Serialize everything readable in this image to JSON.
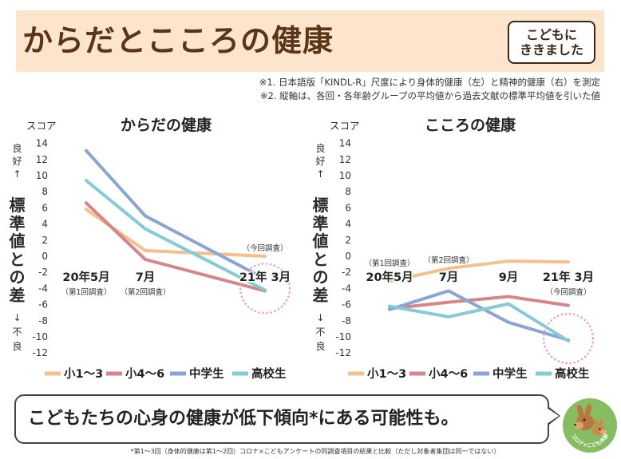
{
  "header": {
    "title": "からだとこころの健康",
    "badge": [
      "こどもに",
      "ききました"
    ]
  },
  "notes": [
    "※1. 日本語版「KINDL-R」尺度により身体的健康（左）と精神的健康（右）を測定",
    "※2. 縦軸は、各回・各年齢グループの平均値から過去文献の標準平均値を引いた値"
  ],
  "chart_data": [
    {
      "type": "line",
      "title": "からだの健康",
      "ylabel": "スコア",
      "side_labels": {
        "top": "良好↑",
        "middle": "標準値との差",
        "bottom": "↓不良"
      },
      "x": [
        "20年5月",
        "7月",
        "21年 3月"
      ],
      "yticks": [
        14,
        12,
        10,
        8,
        6,
        4,
        2,
        0,
        -2,
        -4,
        -6,
        -8,
        -10,
        -12
      ],
      "ylim": [
        -12,
        14
      ],
      "series": [
        {
          "name": "小1～3",
          "color": "#f5c08c",
          "values": [
            5.8,
            0.7,
            0.0
          ]
        },
        {
          "name": "小4～6",
          "color": "#d5868a",
          "values": [
            6.6,
            -0.4,
            -4.3
          ]
        },
        {
          "name": "中学生",
          "color": "#8aa4d4",
          "values": [
            13.1,
            5.0,
            -2.8
          ]
        },
        {
          "name": "高校生",
          "color": "#85cad6",
          "values": [
            9.4,
            3.4,
            -4.2
          ]
        }
      ],
      "annotations": [
        {
          "at": "20年5月",
          "text": "（第1回調査）",
          "position": "below"
        },
        {
          "at": "7月",
          "text": "（第2回調査）",
          "position": "below"
        },
        {
          "at": "21年 3月",
          "text": "（今回調査）",
          "position": "above"
        }
      ],
      "highlight": "21年 3月",
      "grid": false,
      "legend": "bottom"
    },
    {
      "type": "line",
      "title": "こころの健康",
      "ylabel": "スコア",
      "side_labels": {
        "top": "良好↑",
        "middle": "標準値との差",
        "bottom": "↓不良"
      },
      "x": [
        "20年5月",
        "7月",
        "9月",
        "21年 3月"
      ],
      "yticks": [
        14,
        12,
        10,
        8,
        6,
        4,
        2,
        0,
        -2,
        -4,
        -6,
        -8,
        -10,
        -12
      ],
      "ylim": [
        -12,
        14
      ],
      "series": [
        {
          "name": "小1～3",
          "color": "#f5c08c",
          "values": [
            -3.1,
            -1.5,
            -0.6,
            -0.7
          ]
        },
        {
          "name": "小4～6",
          "color": "#d5868a",
          "values": [
            -6.5,
            -5.7,
            -5.0,
            -6.1
          ]
        },
        {
          "name": "中学生",
          "color": "#8aa4d4",
          "values": [
            -6.6,
            -4.3,
            -8.2,
            -10.4
          ]
        },
        {
          "name": "高校生",
          "color": "#85cad6",
          "values": [
            -6.2,
            -7.5,
            -5.9,
            -10.5
          ]
        }
      ],
      "annotations": [
        {
          "at": "20年5月",
          "text": "（第1回調査）",
          "position": "above"
        },
        {
          "at": "7月",
          "text": "（第2回調査）",
          "position": "above"
        },
        {
          "at": "21年 3月",
          "text": "（今回調査）",
          "position": "below"
        }
      ],
      "highlight": "21年 3月",
      "grid": false,
      "legend": "bottom"
    }
  ],
  "callout": {
    "text": "こどもたちの心身の健康が低下傾向*にある可能性も。"
  },
  "mascot": {
    "logo_text": "コロナ×こども本部"
  },
  "footnote": "*第1～3回（身体的健康は第1～2回）コロナ×こどもアンケートの同調査項目の結果と比較（ただし対象者集団は同一ではない）",
  "colors": {
    "banner": "#fde5cd",
    "title": "#5a3519",
    "highlight_circle": "#ef98c2",
    "mascot_background": "#86bd62"
  }
}
